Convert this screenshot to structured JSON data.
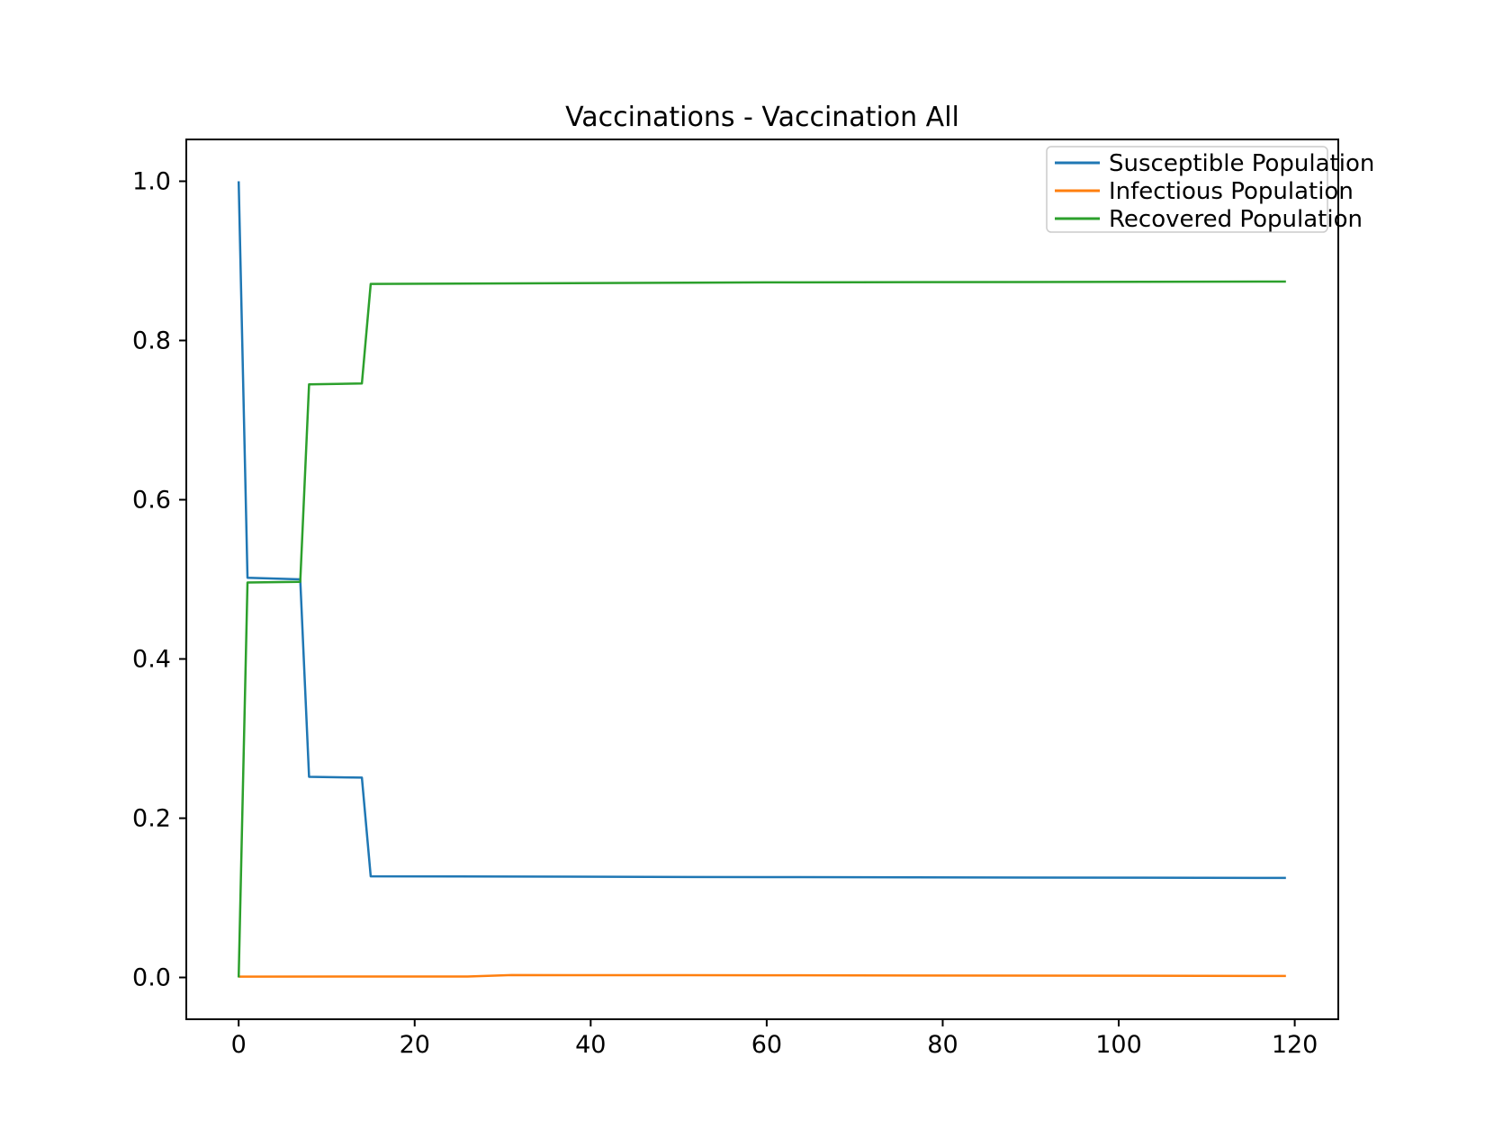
{
  "figure": {
    "background": "#ffffff"
  },
  "chart_data": {
    "type": "line",
    "title": "Vaccinations - Vaccination All",
    "xlabel": "",
    "ylabel": "",
    "xlim": [
      -5.95,
      124.95
    ],
    "ylim": [
      -0.0525,
      1.0525
    ],
    "grid": false,
    "x_ticks": {
      "values": [
        0,
        20,
        40,
        60,
        80,
        100,
        120
      ],
      "labels": [
        "0",
        "20",
        "40",
        "60",
        "80",
        "100",
        "120"
      ]
    },
    "y_ticks": {
      "values": [
        0.0,
        0.2,
        0.4,
        0.6,
        0.8,
        1.0
      ],
      "labels": [
        "0.0",
        "0.2",
        "0.4",
        "0.6",
        "0.8",
        "1.0"
      ]
    },
    "legend": {
      "position": "upper right",
      "entries": [
        "Susceptible Population",
        "Infectious Population",
        "Recovered Population"
      ]
    },
    "series": [
      {
        "name": "Susceptible Population",
        "color": "#1f77b4",
        "points": [
          [
            0,
            1.0
          ],
          [
            1,
            0.502
          ],
          [
            7,
            0.5
          ],
          [
            8,
            0.252
          ],
          [
            14,
            0.251
          ],
          [
            15,
            0.127
          ],
          [
            60,
            0.126
          ],
          [
            119,
            0.125
          ]
        ]
      },
      {
        "name": "Infectious Population",
        "color": "#ff7f0e",
        "points": [
          [
            0,
            0.001
          ],
          [
            26,
            0.0012
          ],
          [
            31,
            0.003
          ],
          [
            60,
            0.0028
          ],
          [
            119,
            0.0018
          ]
        ]
      },
      {
        "name": "Recovered Population",
        "color": "#2ca02c",
        "points": [
          [
            0,
            0.0
          ],
          [
            1,
            0.496
          ],
          [
            7,
            0.497
          ],
          [
            8,
            0.745
          ],
          [
            14,
            0.746
          ],
          [
            15,
            0.871
          ],
          [
            60,
            0.873
          ],
          [
            119,
            0.874
          ]
        ]
      }
    ],
    "style": {
      "spine_color": "#000000",
      "tick_color": "#000000",
      "text_color": "#000000",
      "legend_border_color": "#cccccc",
      "legend_background": "#ffffff"
    }
  }
}
